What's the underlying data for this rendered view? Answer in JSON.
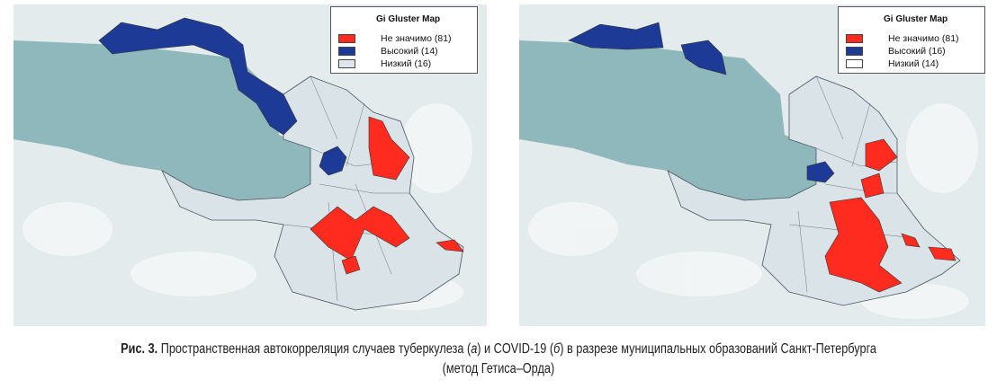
{
  "figure": {
    "maps": [
      {
        "id": "a",
        "legend": {
          "title": "Gi Gluster Map",
          "items": [
            {
              "label": "Не значимо (81)",
              "color": "#ff2b1f"
            },
            {
              "label": "Высокий (14)",
              "color": "#1d3a96"
            },
            {
              "label": "Низкий (16)",
              "color": "#dde6ea"
            }
          ]
        }
      },
      {
        "id": "b",
        "legend": {
          "title": "Gi Gluster Map",
          "items": [
            {
              "label": "Не значимо (81)",
              "color": "#ff2b1f"
            },
            {
              "label": "Высокий (16)",
              "color": "#1d3a96"
            },
            {
              "label": "Низкий (14)",
              "color": "#ffffff"
            }
          ]
        }
      }
    ],
    "colors": {
      "water": "#8fb8bd",
      "land": "#e3ebec",
      "district": "#d9e3e8",
      "border": "#4a5560"
    }
  },
  "caption": {
    "label": "Рис. 3.",
    "text1": " Пространственная автокорреляция случаев туберкулеза (",
    "a": "а",
    "text2": ") и COVID-19 (",
    "b": "б",
    "text3": ") в разрезе муниципальных образований Санкт-Петербурга",
    "line2": "(метод Гетиса–Орда)"
  }
}
